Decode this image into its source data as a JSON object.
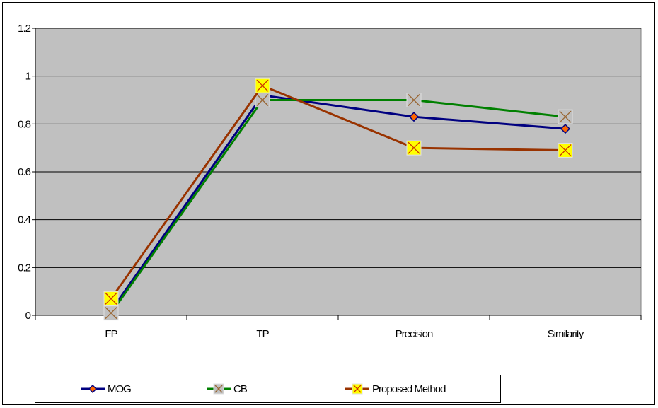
{
  "chart_data": {
    "type": "line",
    "categories": [
      "FP",
      "TP",
      "Precision",
      "Similarity"
    ],
    "ylim": [
      0,
      1.2
    ],
    "yticks": [
      "0",
      "0.2",
      "0.4",
      "0.6",
      "0.8",
      "1",
      "1.2"
    ],
    "grid": true,
    "legend_position": "bottom",
    "plot_background": "#c0c0c0",
    "series": [
      {
        "name": "MOG",
        "values": [
          0.02,
          0.92,
          0.83,
          0.78
        ],
        "color": "#000080",
        "marker": "diamond",
        "marker_color": "#ff6600"
      },
      {
        "name": "CB",
        "values": [
          0.01,
          0.9,
          0.9,
          0.83
        ],
        "color": "#008000",
        "marker": "x-square",
        "marker_color": "#c0c0c0"
      },
      {
        "name": "Proposed Method",
        "values": [
          0.07,
          0.96,
          0.7,
          0.69
        ],
        "color": "#993300",
        "marker": "x-square",
        "marker_color": "#ffff00"
      }
    ]
  }
}
